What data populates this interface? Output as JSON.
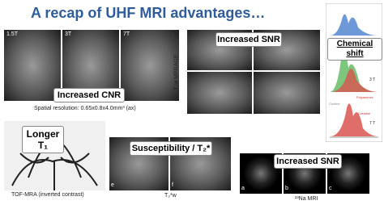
{
  "title": "A recap of UHF MRI advantages…",
  "cnr_panel": {
    "field_labels": [
      "1.5T",
      "3T",
      "7T"
    ],
    "label": "Increased CNR",
    "caption": "Spatial resolution: 0.65x0.8x4.0mm³ (ax)"
  },
  "snr_panel": {
    "label": "Increased SNR",
    "side_label": "T₁w MPRAGE"
  },
  "chemical_panel": {
    "label": "Chemical shift",
    "spectra_labels": [
      "3 T",
      "7 T"
    ],
    "peak_labels": [
      "Polyamines",
      "Creatine",
      "Choline"
    ]
  },
  "t1_panel": {
    "label": "Longer T₁",
    "caption": "TOF-MRA (inverted contrast)"
  },
  "susceptibility_panel": {
    "label": "Susceptibility / T₂*",
    "image_letters": [
      "e",
      "f"
    ],
    "caption": "T₂*w"
  },
  "sodium_panel": {
    "label": "Increased SNR",
    "image_letters": [
      "a",
      "b",
      "c"
    ],
    "caption": "²³Na MRI"
  }
}
